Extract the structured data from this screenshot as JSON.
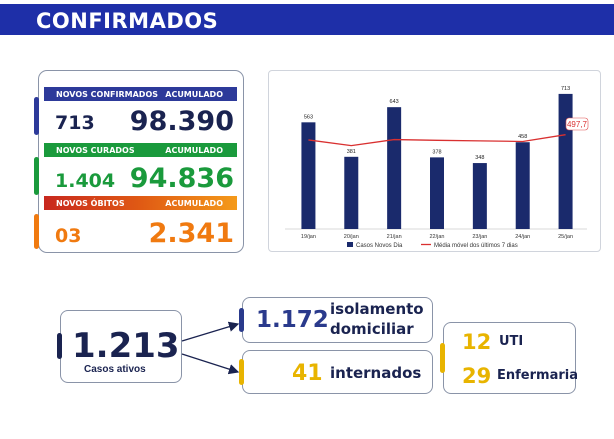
{
  "header": {
    "title": "CONFIRMADOS"
  },
  "stats": {
    "confirmados": {
      "label": "NOVOS CONFIRMADOS",
      "acc_label": "ACUMULADO",
      "new": "713",
      "total": "98.390",
      "color": "#2d3a9a"
    },
    "curados": {
      "label": "NOVOS CURADOS",
      "acc_label": "ACUMULADO",
      "new": "1.404",
      "total": "94.836",
      "color": "#1a9a3c"
    },
    "obitos": {
      "label": "NOVOS ÓBITOS",
      "acc_label": "ACUMULADO",
      "new": "03",
      "total": "2.341",
      "color": "#f07a10"
    }
  },
  "chart_data": {
    "type": "bar",
    "categories": [
      "19/jan",
      "20/jan",
      "21/jan",
      "22/jan",
      "23/jan",
      "24/jan",
      "25/jan"
    ],
    "series": [
      {
        "name": "Casos Novos Dia",
        "type": "bar",
        "values": [
          563,
          381,
          643,
          378,
          348,
          458,
          713
        ],
        "color": "#1a2a6c"
      },
      {
        "name": "Média móvel dos últimos 7 dias",
        "type": "line",
        "values": [
          470,
          440,
          472,
          468,
          465,
          462,
          497.7
        ],
        "color": "#d93030"
      }
    ],
    "data_labels": [
      "563",
      "381",
      "643",
      "378",
      "348",
      "458",
      "713"
    ],
    "line_end_label": "497,7",
    "ylim": [
      0,
      760
    ]
  },
  "ativos": {
    "value": "1.213",
    "label": "Casos ativos"
  },
  "isolamento": {
    "value": "1.172",
    "label_line1": "isolamento",
    "label_line2": "domiciliar"
  },
  "internados": {
    "value": "41",
    "label": "internados"
  },
  "uti": {
    "value": "12",
    "label": "UTI"
  },
  "enfermaria": {
    "value": "29",
    "label": "Enfermaria"
  },
  "colors": {
    "navy": "#1a2350",
    "blue": "#2a3a8c",
    "gold": "#e8b400",
    "header": "#1e2fa8"
  }
}
